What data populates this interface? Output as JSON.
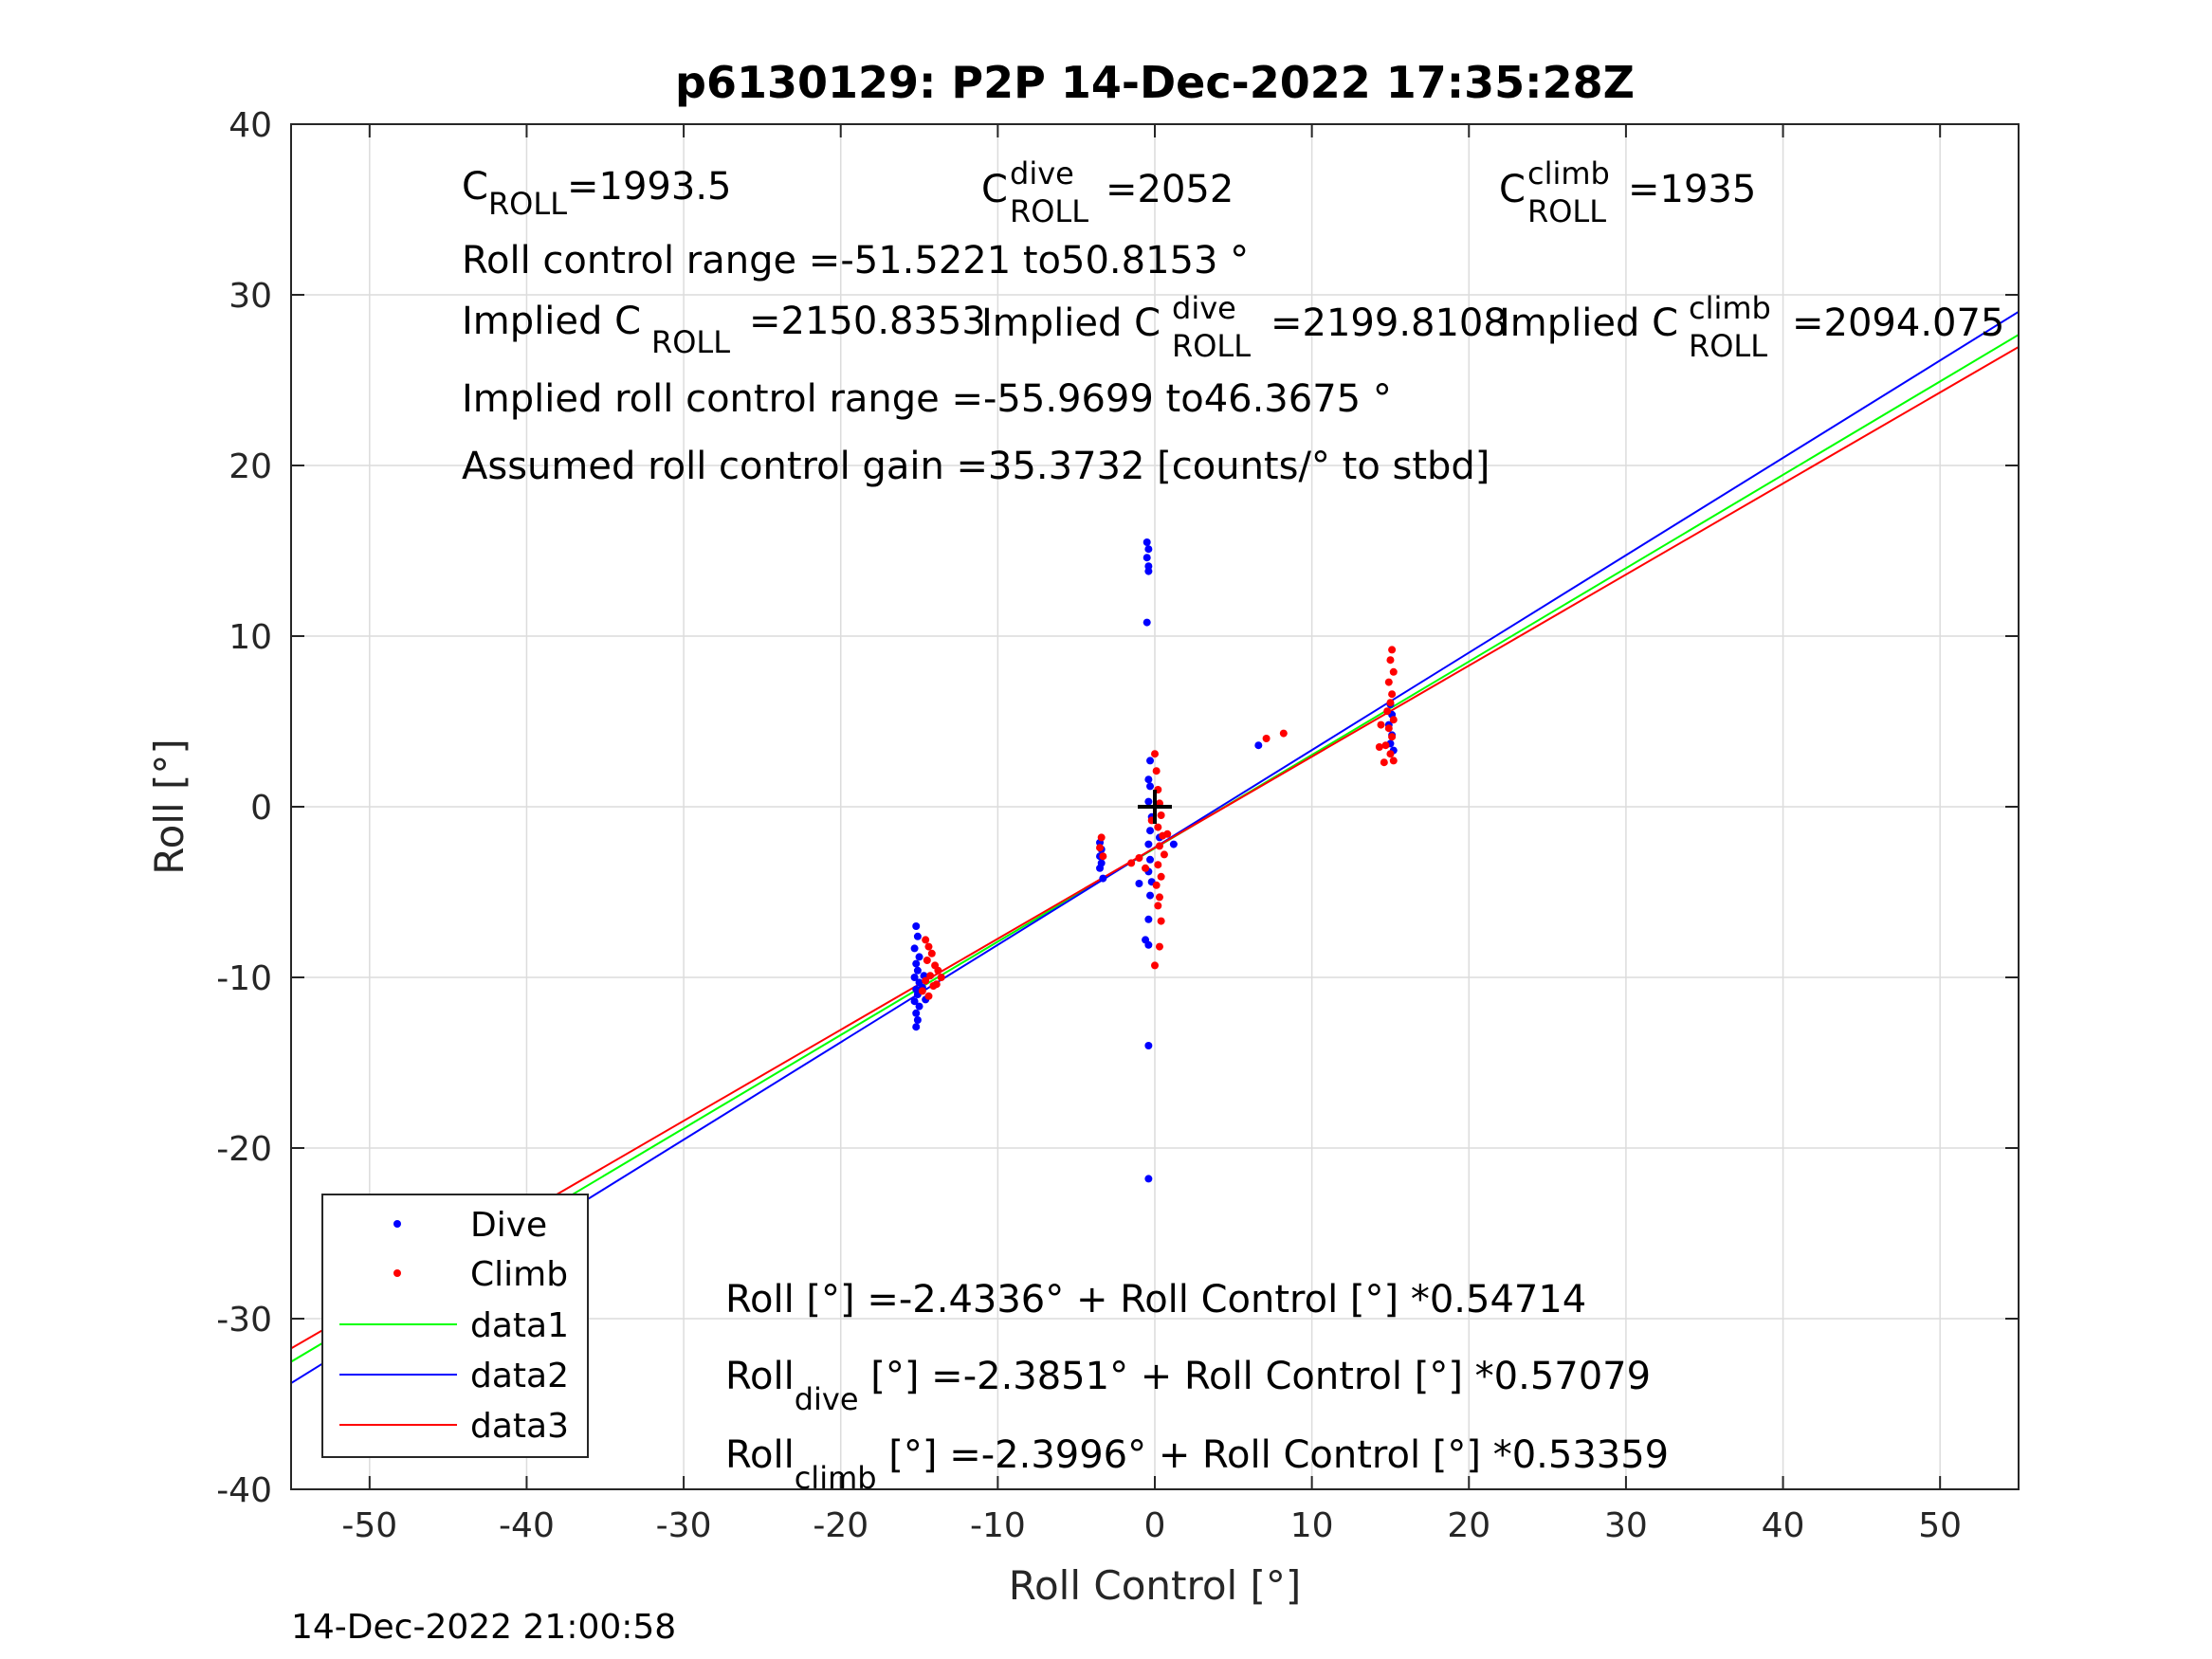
{
  "chart_data": {
    "type": "scatter",
    "title": "p6130129: P2P 14-Dec-2022 17:35:28Z",
    "xlabel": "Roll Control [°]",
    "ylabel": "Roll [°]",
    "xlim": [
      -55,
      55
    ],
    "ylim": [
      -40,
      40
    ],
    "x_ticks": [
      -50,
      -40,
      -30,
      -20,
      -10,
      0,
      10,
      20,
      30,
      40,
      50
    ],
    "y_ticks": [
      -40,
      -30,
      -20,
      -10,
      0,
      10,
      20,
      30,
      40
    ],
    "grid": true,
    "legend_placement": "bottom-left",
    "series": [
      {
        "name": "Dive",
        "kind": "scatter",
        "color": "#0000ff",
        "points": [
          [
            -15.2,
            -7.0
          ],
          [
            -15.1,
            -7.6
          ],
          [
            -15.3,
            -8.3
          ],
          [
            -15.0,
            -8.8
          ],
          [
            -15.2,
            -9.2
          ],
          [
            -15.1,
            -9.6
          ],
          [
            -15.3,
            -10.0
          ],
          [
            -15.0,
            -10.3
          ],
          [
            -15.2,
            -10.7
          ],
          [
            -15.1,
            -11.0
          ],
          [
            -15.3,
            -11.4
          ],
          [
            -15.0,
            -11.7
          ],
          [
            -15.2,
            -12.1
          ],
          [
            -15.1,
            -12.5
          ],
          [
            -15.2,
            -12.9
          ],
          [
            -14.8,
            -10.6
          ],
          [
            -14.6,
            -11.3
          ],
          [
            -14.7,
            -9.9
          ],
          [
            -3.5,
            -2.1
          ],
          [
            -3.4,
            -2.5
          ],
          [
            -3.5,
            -2.9
          ],
          [
            -3.4,
            -3.3
          ],
          [
            -3.5,
            -3.6
          ],
          [
            -3.3,
            -4.2
          ],
          [
            -0.5,
            15.5
          ],
          [
            -0.4,
            15.1
          ],
          [
            -0.5,
            14.6
          ],
          [
            -0.4,
            14.1
          ],
          [
            -0.4,
            13.8
          ],
          [
            -0.5,
            10.8
          ],
          [
            -0.3,
            2.7
          ],
          [
            -0.4,
            1.6
          ],
          [
            -0.3,
            1.2
          ],
          [
            -0.4,
            0.3
          ],
          [
            -0.2,
            -0.6
          ],
          [
            -0.3,
            -1.4
          ],
          [
            -0.4,
            -2.2
          ],
          [
            -0.3,
            -3.1
          ],
          [
            -0.4,
            -3.8
          ],
          [
            -0.2,
            -4.4
          ],
          [
            -0.3,
            -5.2
          ],
          [
            -0.4,
            -6.6
          ],
          [
            -0.6,
            -7.8
          ],
          [
            -0.4,
            -8.1
          ],
          [
            -1.0,
            -4.5
          ],
          [
            -0.4,
            -14.0
          ],
          [
            -0.4,
            -21.8
          ],
          [
            1.2,
            -2.2
          ],
          [
            0.3,
            -1.8
          ],
          [
            6.6,
            3.6
          ],
          [
            15.0,
            6.0
          ],
          [
            15.1,
            5.4
          ],
          [
            14.9,
            4.8
          ],
          [
            15.1,
            4.2
          ],
          [
            15.0,
            3.7
          ],
          [
            15.2,
            3.3
          ]
        ]
      },
      {
        "name": "Climb",
        "kind": "scatter",
        "color": "#ff0000",
        "points": [
          [
            -14.6,
            -7.8
          ],
          [
            -14.4,
            -8.2
          ],
          [
            -14.2,
            -8.6
          ],
          [
            -14.5,
            -9.0
          ],
          [
            -14.0,
            -9.3
          ],
          [
            -13.8,
            -9.6
          ],
          [
            -14.3,
            -9.9
          ],
          [
            -14.6,
            -10.2
          ],
          [
            -14.1,
            -10.5
          ],
          [
            -14.8,
            -10.8
          ],
          [
            -14.4,
            -11.1
          ],
          [
            -13.6,
            -10.0
          ],
          [
            -13.9,
            -10.4
          ],
          [
            -3.4,
            -1.8
          ],
          [
            -3.5,
            -2.4
          ],
          [
            -3.3,
            -2.9
          ],
          [
            -1.5,
            -3.3
          ],
          [
            -1.0,
            -3.0
          ],
          [
            -0.6,
            -3.6
          ],
          [
            0.0,
            3.1
          ],
          [
            0.1,
            2.1
          ],
          [
            0.2,
            1.0
          ],
          [
            0.3,
            0.2
          ],
          [
            0.4,
            -0.5
          ],
          [
            0.2,
            -1.2
          ],
          [
            0.5,
            -1.7
          ],
          [
            0.3,
            -2.3
          ],
          [
            0.6,
            -2.8
          ],
          [
            0.2,
            -3.4
          ],
          [
            0.4,
            -4.1
          ],
          [
            0.1,
            -4.6
          ],
          [
            0.3,
            -5.3
          ],
          [
            0.2,
            -5.8
          ],
          [
            0.4,
            -6.7
          ],
          [
            0.3,
            -8.2
          ],
          [
            0.0,
            -9.3
          ],
          [
            0.8,
            -1.6
          ],
          [
            -0.2,
            -0.8
          ],
          [
            7.1,
            4.0
          ],
          [
            8.2,
            4.3
          ],
          [
            15.1,
            9.2
          ],
          [
            15.0,
            8.6
          ],
          [
            15.2,
            7.9
          ],
          [
            14.9,
            7.3
          ],
          [
            15.1,
            6.6
          ],
          [
            15.0,
            6.1
          ],
          [
            14.8,
            5.6
          ],
          [
            15.2,
            5.1
          ],
          [
            14.9,
            4.6
          ],
          [
            15.1,
            4.1
          ],
          [
            14.7,
            3.6
          ],
          [
            15.0,
            3.1
          ],
          [
            15.2,
            2.7
          ],
          [
            14.6,
            2.6
          ],
          [
            14.3,
            3.5
          ],
          [
            14.4,
            4.8
          ]
        ]
      },
      {
        "name": "data1",
        "kind": "line",
        "color": "#00ff00",
        "intercept": -2.4336,
        "slope": 0.54714
      },
      {
        "name": "data2",
        "kind": "line",
        "color": "#0000ff",
        "intercept": -2.3851,
        "slope": 0.57079
      },
      {
        "name": "data3",
        "kind": "line",
        "color": "#ff0000",
        "intercept": -2.3996,
        "slope": 0.53359
      }
    ],
    "marker": {
      "x": 0,
      "y": 0,
      "color": "#000000"
    },
    "annotations": {
      "c_roll_base": "C",
      "c_roll_sub": "ROLL",
      "c_roll_val": "=1993.5",
      "c_dive_base": "C",
      "c_dive_sup": "dive",
      "c_dive_sub": "ROLL",
      "c_dive_val": "=2052",
      "c_climb_base": "C",
      "c_climb_sup": "climb",
      "c_climb_sub": "ROLL",
      "c_climb_val": "=1935",
      "roll_range": "Roll control range =-51.5221 to50.8153 °",
      "implied_base": "Implied C",
      "implied_sub": "ROLL",
      "implied_val": "=2150.8353",
      "implied_dive_base": "Implied C",
      "implied_dive_sup": "dive",
      "implied_dive_sub": "ROLL",
      "implied_dive_val": "=2199.8108",
      "implied_climb_base": "Implied C",
      "implied_climb_sup": "climb",
      "implied_climb_sub": "ROLL",
      "implied_climb_val": "=2094.075",
      "implied_range": "Implied roll control range =-55.9699 to46.3675 °",
      "gain": "Assumed roll control gain =35.3732 [counts/° to stbd]",
      "eq1": "Roll [°] =-2.4336° + Roll Control [°] *0.54714",
      "eq2_base": "Roll",
      "eq2_sub": "dive",
      "eq2_rest": " [°] =-2.3851° + Roll Control [°] *0.57079",
      "eq3_base": "Roll",
      "eq3_sub": "climb",
      "eq3_rest": " [°] =-2.3996° + Roll Control [°] *0.53359"
    },
    "footer": "14-Dec-2022 21:00:58"
  }
}
